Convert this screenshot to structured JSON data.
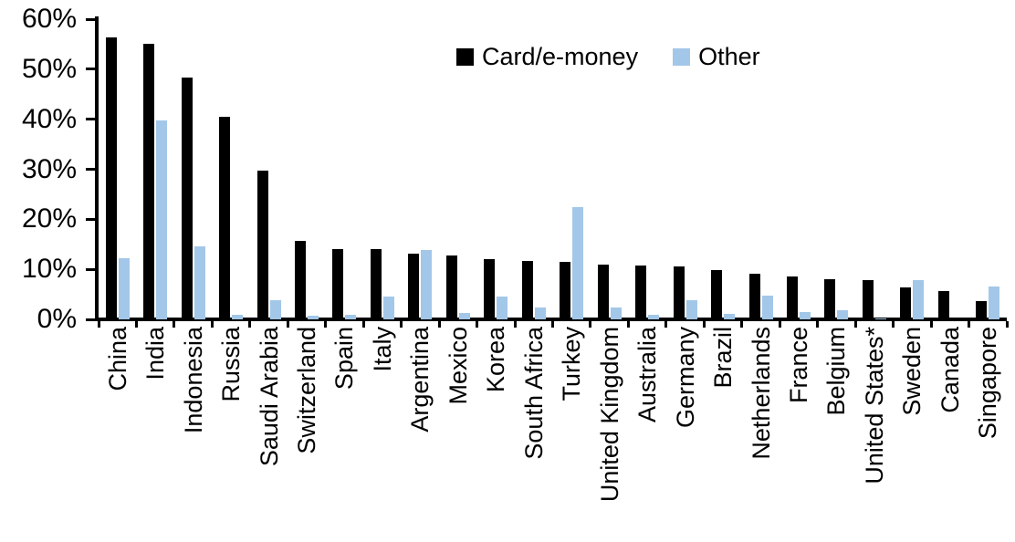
{
  "y_axis": {
    "tick_labels": [
      "60%",
      "50%",
      "40%",
      "30%",
      "20%",
      "10%",
      "0%"
    ]
  },
  "chart_data": {
    "type": "bar",
    "title": "",
    "xlabel": "",
    "ylabel": "",
    "ylim": [
      0,
      60
    ],
    "y_tick_step": 10,
    "y_tick_format": "percent",
    "grid": false,
    "legend_position": "top-center",
    "background_color": "#FFFFFF",
    "axis_color": "#000000",
    "categories": [
      "China",
      "India",
      "Indonesia",
      "Russia",
      "Saudi Arabia",
      "Switzerland",
      "Spain",
      "Italy",
      "Argentina",
      "Mexico",
      "Korea",
      "South Africa",
      "Turkey",
      "United Kingdom",
      "Australia",
      "Germany",
      "Brazil",
      "Netherlands",
      "France",
      "Belgium",
      "United States*",
      "Sweden",
      "Canada",
      "Singapore"
    ],
    "series": [
      {
        "name": "Card/e-money",
        "color": "#000000",
        "values": [
          56.4,
          55.1,
          48.4,
          40.5,
          29.8,
          15.6,
          14.1,
          14.0,
          13.2,
          12.8,
          12.1,
          11.6,
          11.5,
          11.0,
          10.7,
          10.5,
          9.9,
          9.2,
          8.6,
          8.0,
          7.8,
          6.4,
          5.7,
          3.7
        ]
      },
      {
        "name": "Other",
        "color": "#A3C7E8",
        "values": [
          12.3,
          39.7,
          14.5,
          1.0,
          3.8,
          0.7,
          0.9,
          4.5,
          13.8,
          1.2,
          4.6,
          2.3,
          22.5,
          2.3,
          0.9,
          3.9,
          1.1,
          4.8,
          1.4,
          1.9,
          0.2,
          7.9,
          0.0,
          6.5
        ]
      }
    ]
  }
}
